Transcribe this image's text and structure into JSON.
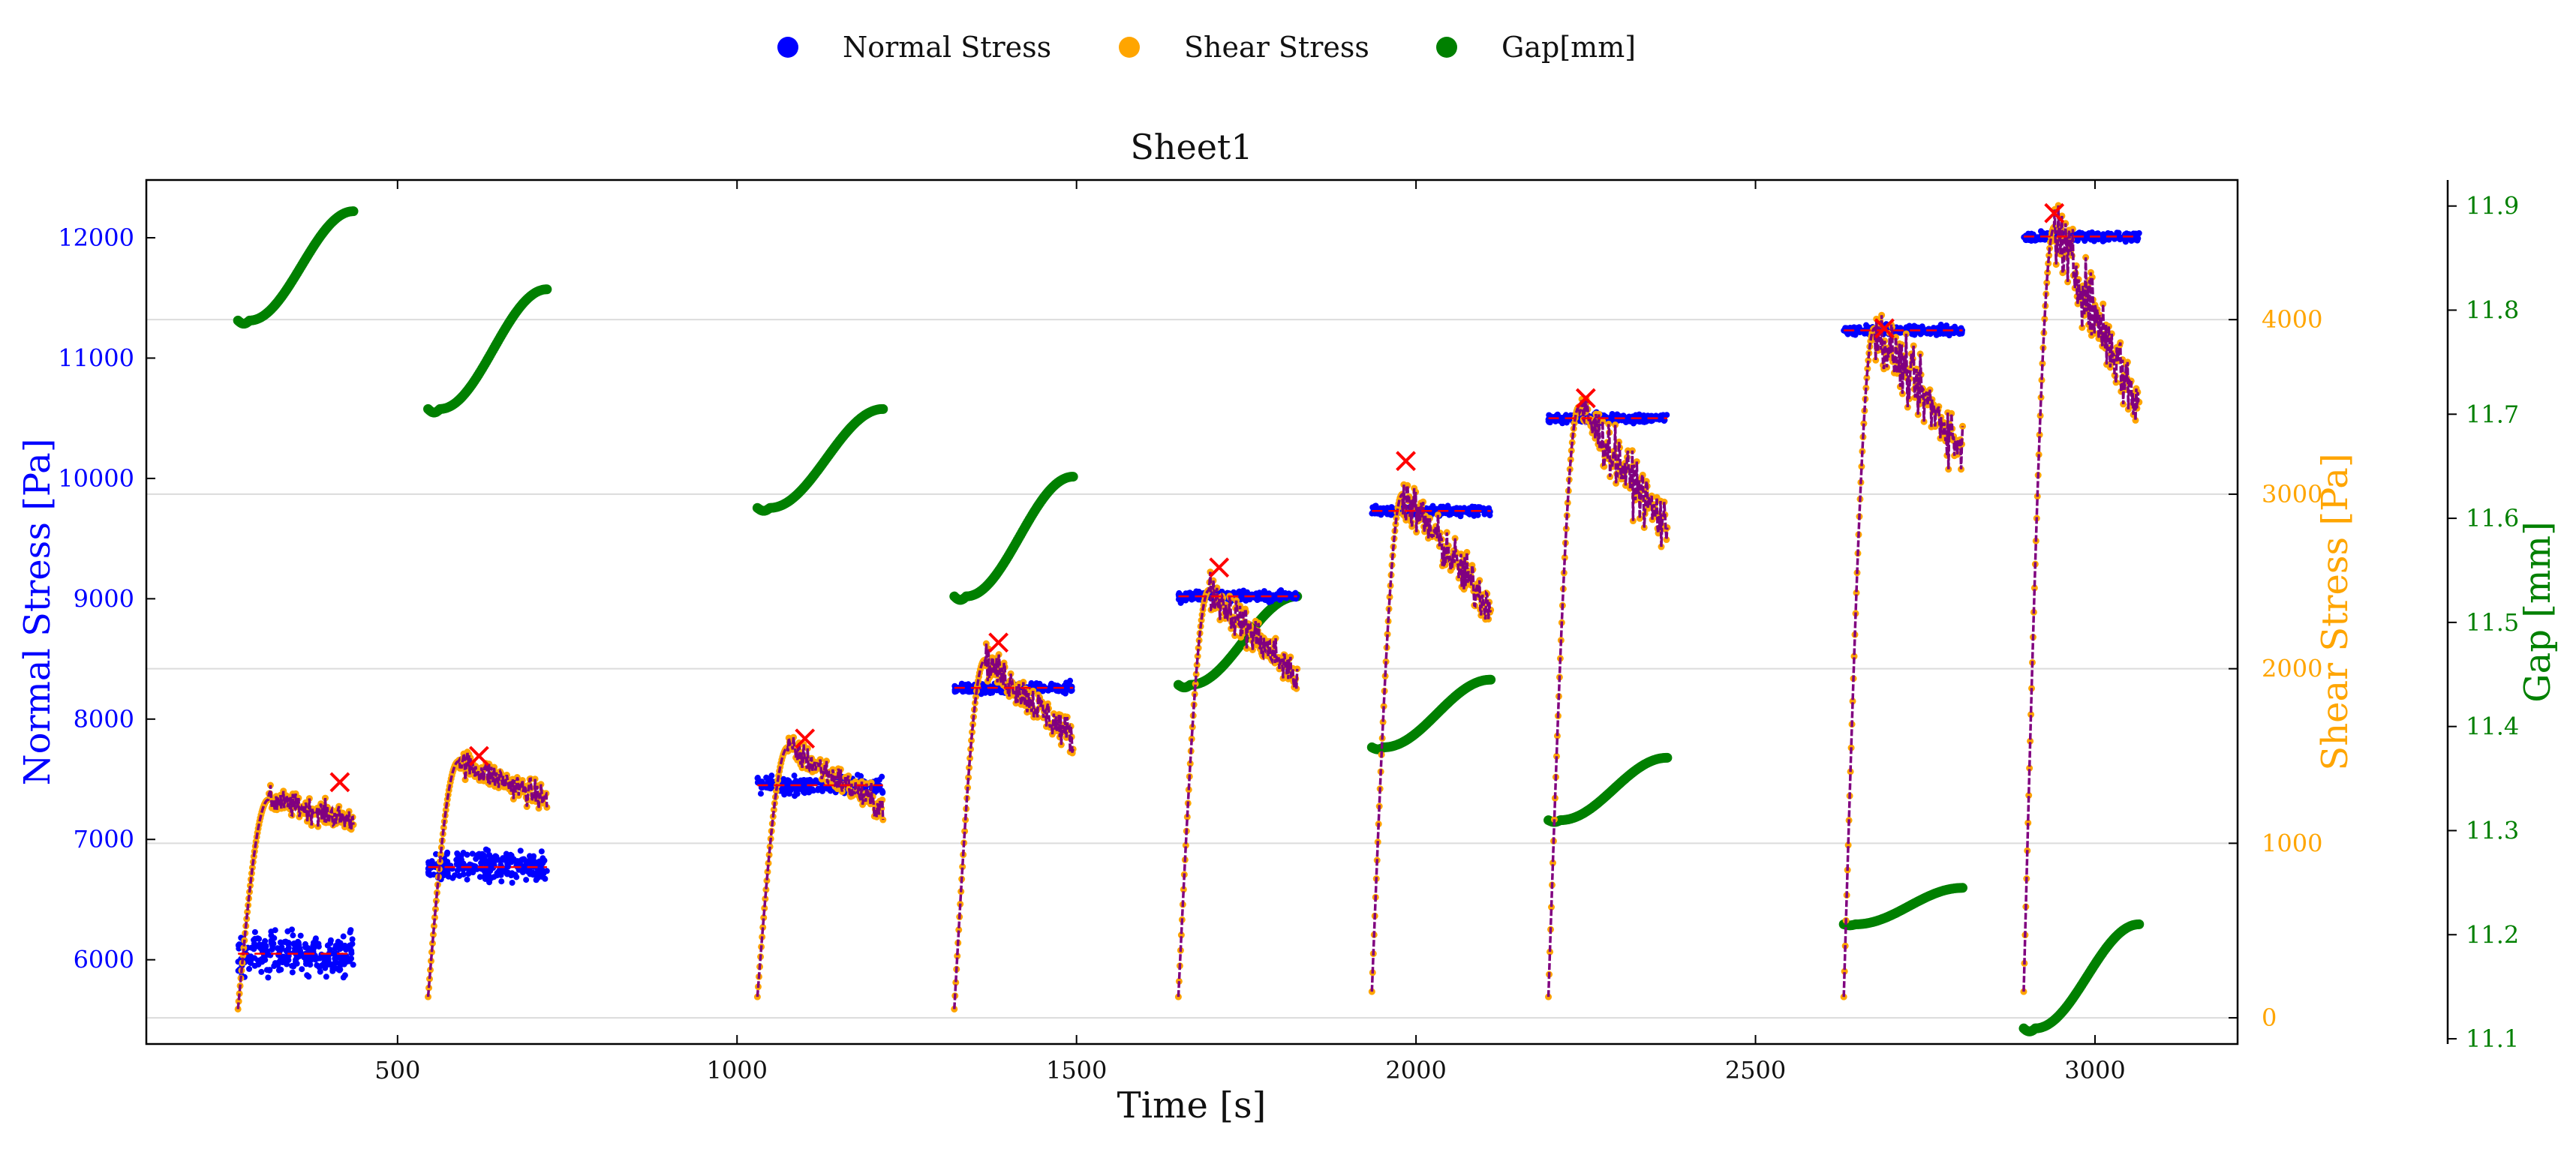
{
  "legend": {
    "items": [
      {
        "label": "Normal Stress",
        "color": "#0000ff"
      },
      {
        "label": "Shear Stress",
        "color": "#ffa500"
      },
      {
        "label": "Gap[mm]",
        "color": "#008000"
      }
    ]
  },
  "chart_data": {
    "type": "scatter",
    "title": "Sheet1",
    "xlabel": "Time [s]",
    "ylabel_left": "Normal Stress [Pa]",
    "ylabel_right1": "Shear Stress [Pa]",
    "ylabel_right2": "Gap [mm]",
    "xlim": [
      130,
      3210
    ],
    "ylim_left": [
      5300,
      12480
    ],
    "ylim_right1": [
      -150,
      4800
    ],
    "ylim_right2": [
      11.095,
      11.925
    ],
    "x_ticks": [
      500,
      1000,
      1500,
      2000,
      2500,
      3000
    ],
    "y_left_ticks": [
      6000,
      7000,
      8000,
      9000,
      10000,
      11000,
      12000
    ],
    "y_right1_ticks": [
      0,
      1000,
      2000,
      3000,
      4000
    ],
    "y_right2_ticks": [
      11.1,
      11.2,
      11.3,
      11.4,
      11.5,
      11.6,
      11.7,
      11.8,
      11.9
    ],
    "grid": "horizontal, aligned to shear stress ticks",
    "colors": {
      "normal": "#0000ff",
      "shear": "#ffa500",
      "shear_line": "#800080",
      "gap": "#008000",
      "mean": "#ff0000",
      "peak": "#ff0000",
      "right1_axis": "#ffa500",
      "right2_axis": "#008000",
      "left_axis": "#0000ff"
    },
    "segments": [
      {
        "start": 265,
        "end": 435,
        "normal_mean": 6050,
        "normal_spread": 170,
        "shear_start": 50,
        "shear_plateau": 1250,
        "shear_end": 1130,
        "peak_time": 415,
        "peak_shear": 1350,
        "gap_start": 11.79,
        "gap_end": 11.895
      },
      {
        "start": 545,
        "end": 720,
        "normal_mean": 6770,
        "normal_spread": 120,
        "shear_start": 120,
        "shear_plateau": 1470,
        "shear_end": 1250,
        "peak_time": 620,
        "peak_shear": 1500,
        "gap_start": 11.705,
        "gap_end": 11.82
      },
      {
        "start": 1030,
        "end": 1215,
        "normal_mean": 7450,
        "normal_spread": 70,
        "shear_start": 120,
        "shear_plateau": 1550,
        "shear_end": 1200,
        "peak_time": 1100,
        "peak_shear": 1600,
        "gap_start": 11.61,
        "gap_end": 11.705
      },
      {
        "start": 1320,
        "end": 1495,
        "normal_mean": 8260,
        "normal_spread": 40,
        "shear_start": 50,
        "shear_plateau": 2050,
        "shear_end": 1600,
        "peak_time": 1385,
        "peak_shear": 2150,
        "gap_start": 11.525,
        "gap_end": 11.64
      },
      {
        "start": 1650,
        "end": 1825,
        "normal_mean": 9020,
        "normal_spread": 40,
        "shear_start": 120,
        "shear_plateau": 2450,
        "shear_end": 1950,
        "peak_time": 1710,
        "peak_shear": 2580,
        "gap_start": 11.44,
        "gap_end": 11.525
      },
      {
        "start": 1935,
        "end": 2110,
        "normal_mean": 9730,
        "normal_spread": 40,
        "shear_start": 150,
        "shear_plateau": 3000,
        "shear_end": 2350,
        "peak_time": 1985,
        "peak_shear": 3190,
        "gap_start": 11.38,
        "gap_end": 11.445
      },
      {
        "start": 2195,
        "end": 2370,
        "normal_mean": 10500,
        "normal_spread": 35,
        "shear_start": 120,
        "shear_plateau": 3500,
        "shear_end": 2800,
        "peak_time": 2250,
        "peak_shear": 3550,
        "gap_start": 11.31,
        "gap_end": 11.37
      },
      {
        "start": 2630,
        "end": 2805,
        "normal_mean": 11230,
        "normal_spread": 35,
        "shear_start": 120,
        "shear_plateau": 3950,
        "shear_end": 3250,
        "peak_time": 2690,
        "peak_shear": 3950,
        "gap_start": 11.21,
        "gap_end": 11.245
      },
      {
        "start": 2895,
        "end": 3065,
        "normal_mean": 12010,
        "normal_spread": 35,
        "shear_start": 150,
        "shear_plateau": 4530,
        "shear_end": 3500,
        "peak_time": 2940,
        "peak_shear": 4610,
        "gap_start": 11.11,
        "gap_end": 11.21
      }
    ]
  }
}
